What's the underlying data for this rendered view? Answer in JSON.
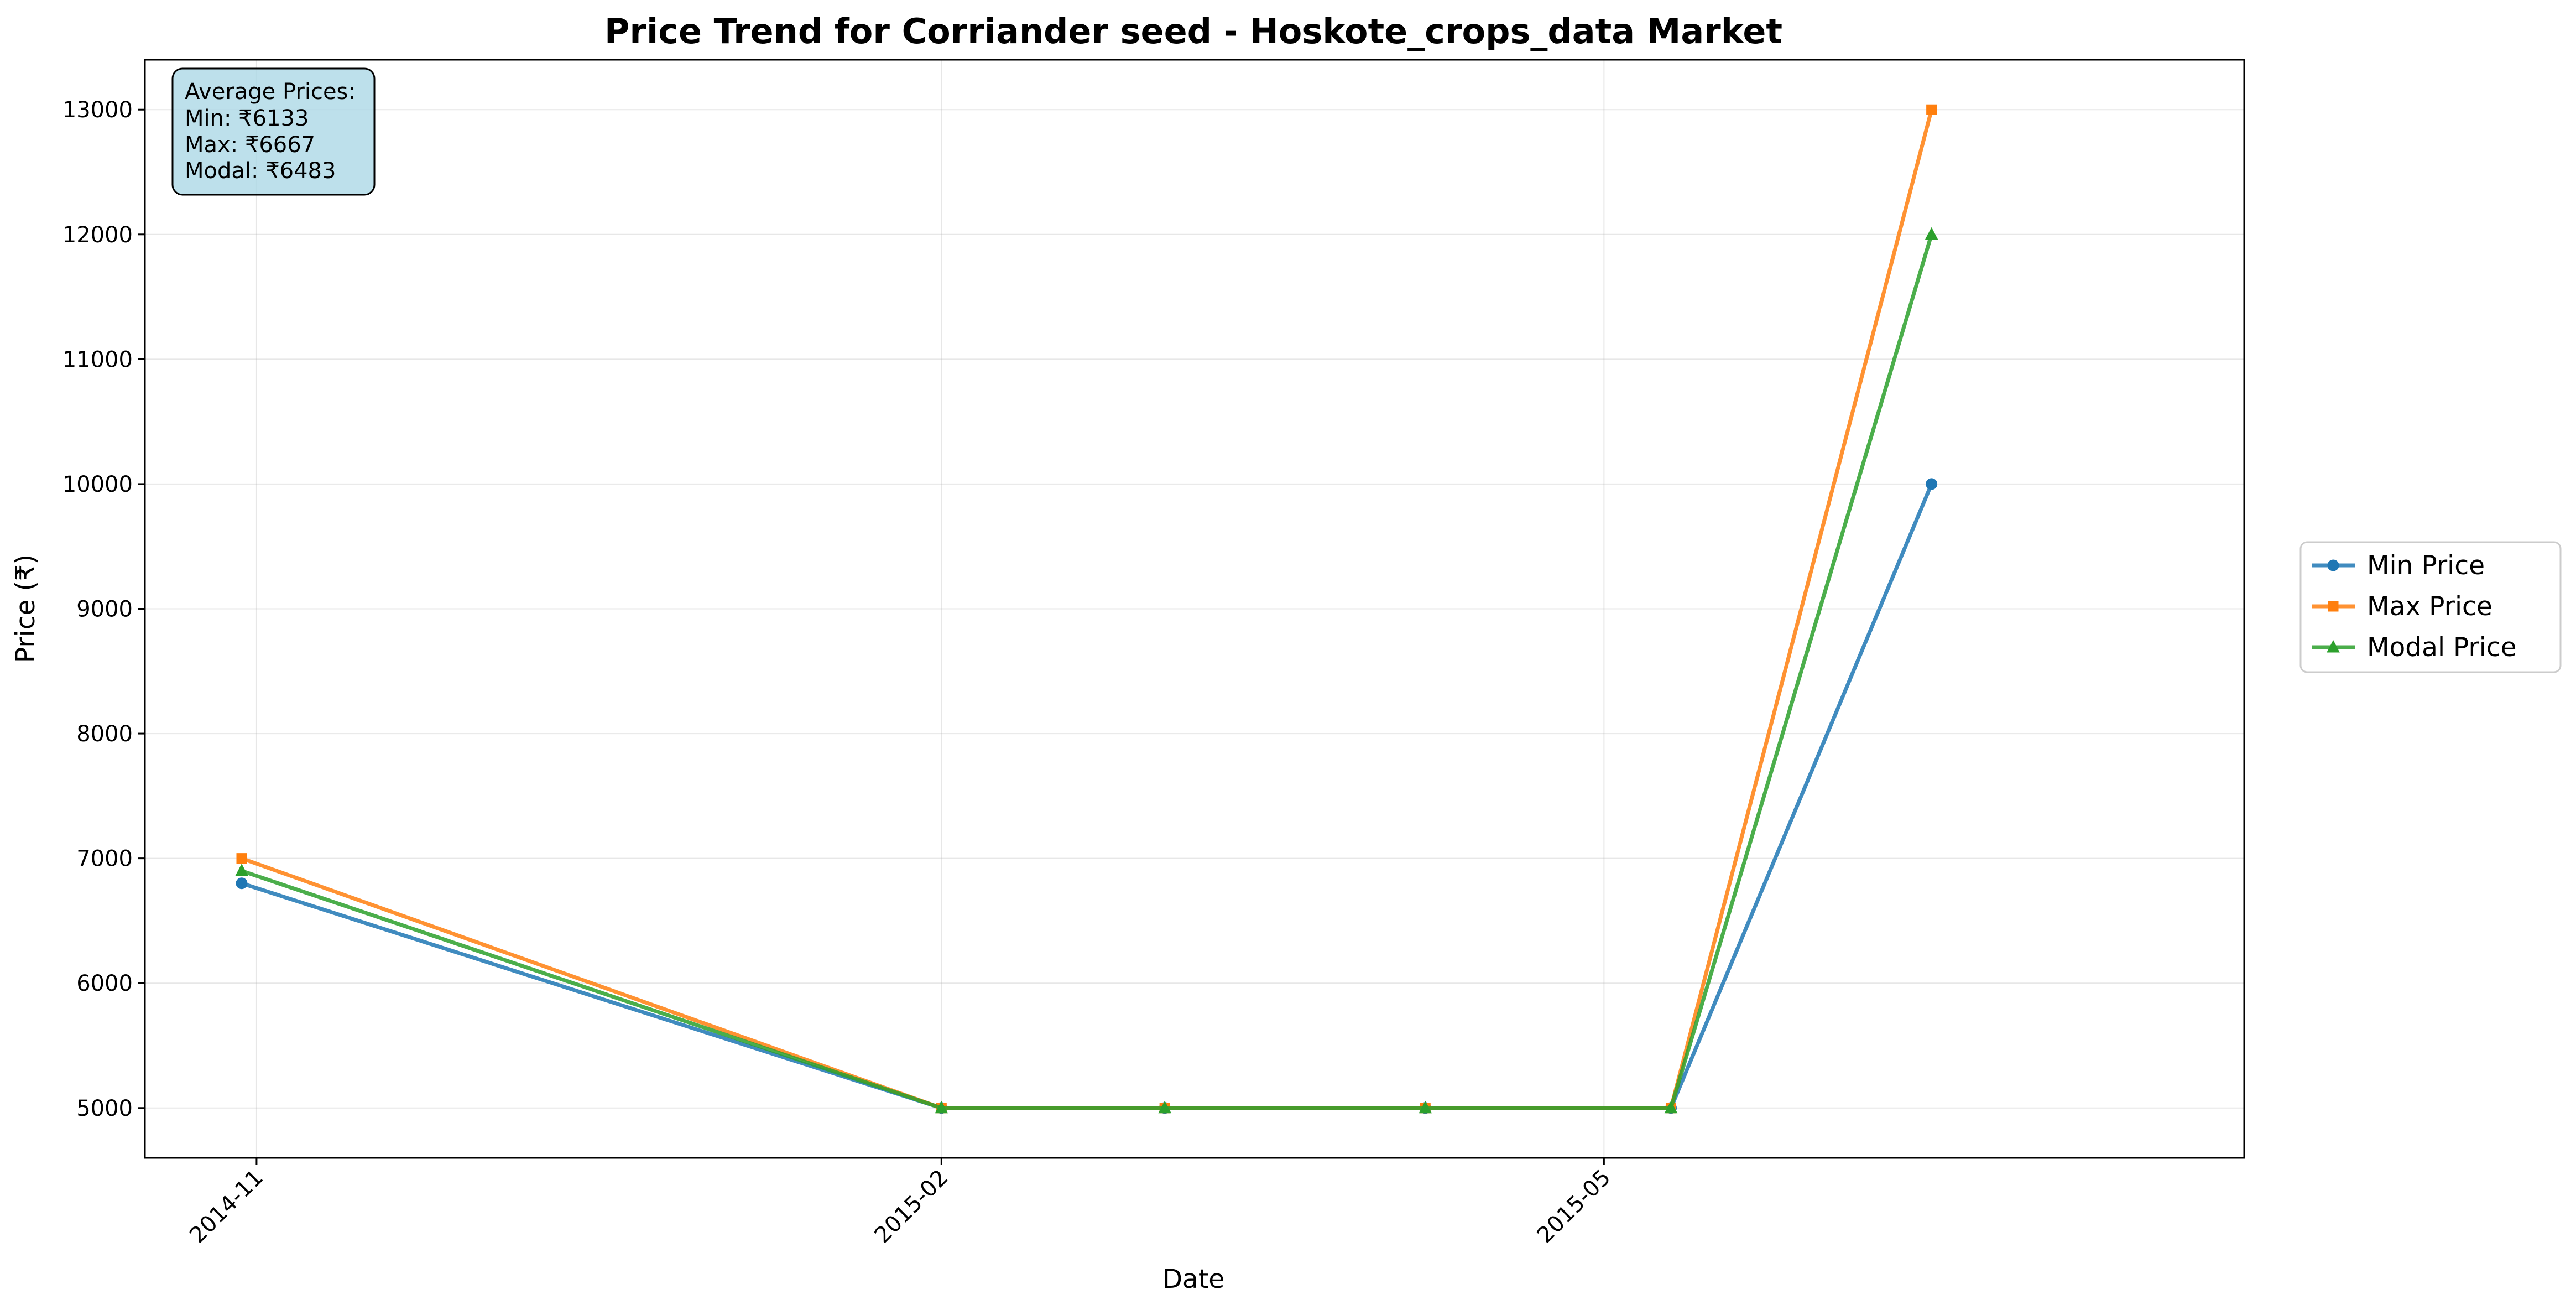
{
  "chart_data": {
    "type": "line",
    "title": "Price Trend for Corriander seed - Hoskote_crops_data Market",
    "xlabel": "Date",
    "ylabel": "Price (₹)",
    "x": [
      "2014-10-30",
      "2015-02-01",
      "2015-03-03",
      "2015-04-07",
      "2015-05-10",
      "2015-06-14"
    ],
    "xlim": [
      "2014-10-17",
      "2015-07-26"
    ],
    "xticks": [
      {
        "date": "2014-11-01",
        "label": "2014-11"
      },
      {
        "date": "2015-02-01",
        "label": "2015-02"
      },
      {
        "date": "2015-05-01",
        "label": "2015-05"
      }
    ],
    "ylim": [
      4600,
      13400
    ],
    "yticks": [
      5000,
      6000,
      7000,
      8000,
      9000,
      10000,
      11000,
      12000,
      13000
    ],
    "grid": true,
    "legend_position": "right",
    "series": [
      {
        "name": "Min Price",
        "color": "#1f77b4",
        "marker": "circle",
        "values": [
          6800,
          5000,
          5000,
          5000,
          5000,
          10000
        ]
      },
      {
        "name": "Max Price",
        "color": "#ff7f0e",
        "marker": "square",
        "values": [
          7000,
          5000,
          5000,
          5000,
          5000,
          13000
        ]
      },
      {
        "name": "Modal Price",
        "color": "#2ca02c",
        "marker": "triangle",
        "values": [
          6900,
          5000,
          5000,
          5000,
          5000,
          12000
        ]
      }
    ],
    "stats_box": {
      "header": "Average Prices:",
      "lines": [
        "Min: ₹6133",
        "Max: ₹6667",
        "Modal: ₹6483"
      ],
      "background": "#add8e6"
    }
  }
}
